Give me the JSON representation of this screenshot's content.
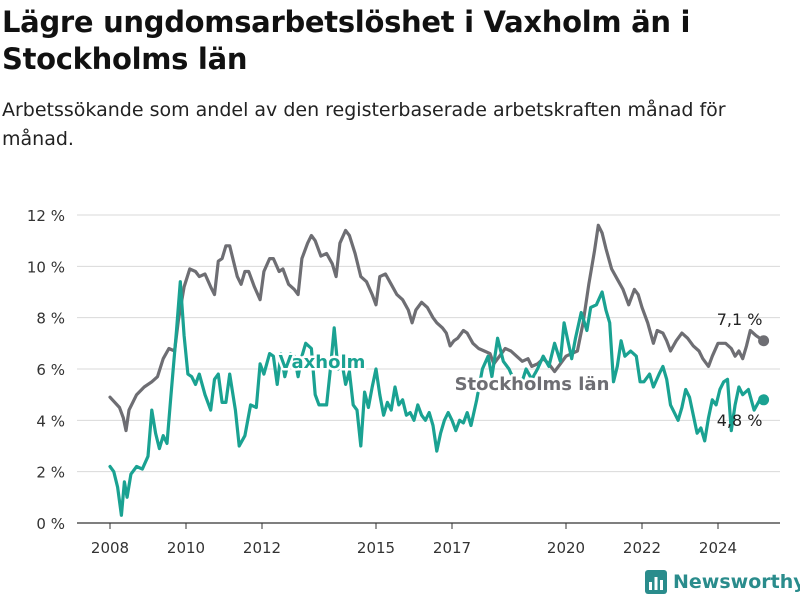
{
  "header": {
    "title": "Lägre ungdomsarbetslöshet i Vaxholm än i Stockholms län",
    "subtitle": "Arbetssökande som andel av den registerbaserade arbetskraften månad för månad."
  },
  "brand": {
    "name": "Newsworthy",
    "color": "#2a8c8c"
  },
  "chart_data": {
    "type": "line",
    "title": "Lägre ungdomsarbetslöshet i Vaxholm än i Stockholms län",
    "subtitle": "Arbetssökande som andel av den registerbaserade arbetskraften månad för månad.",
    "xlabel": "",
    "ylabel": "",
    "xlim": [
      2008,
      2025.2
    ],
    "ylim": [
      0,
      12
    ],
    "y_ticks": [
      0,
      2,
      4,
      6,
      8,
      10,
      12
    ],
    "y_tick_labels": [
      "0 %",
      "2 %",
      "4 %",
      "6 %",
      "8 %",
      "10 %",
      "12 %"
    ],
    "x_ticks": [
      2008,
      2010,
      2012,
      2015,
      2017,
      2020,
      2022,
      2024
    ],
    "x_tick_labels": [
      "2008",
      "2010",
      "2012",
      "2015",
      "2017",
      "2020",
      "2022",
      "2024"
    ],
    "grid": true,
    "series": [
      {
        "name": "Stockholms län",
        "color": "#6e6e73",
        "end_label": "7,1 %",
        "points": [
          [
            2008.0,
            4.9
          ],
          [
            2008.25,
            4.5
          ],
          [
            2008.35,
            4.1
          ],
          [
            2008.42,
            3.6
          ],
          [
            2008.5,
            4.4
          ],
          [
            2008.7,
            5.0
          ],
          [
            2008.9,
            5.3
          ],
          [
            2009.1,
            5.5
          ],
          [
            2009.25,
            5.7
          ],
          [
            2009.4,
            6.4
          ],
          [
            2009.55,
            6.8
          ],
          [
            2009.7,
            6.7
          ],
          [
            2009.8,
            7.9
          ],
          [
            2009.95,
            9.2
          ],
          [
            2010.1,
            9.9
          ],
          [
            2010.25,
            9.8
          ],
          [
            2010.35,
            9.6
          ],
          [
            2010.5,
            9.7
          ],
          [
            2010.65,
            9.2
          ],
          [
            2010.75,
            8.9
          ],
          [
            2010.85,
            10.2
          ],
          [
            2010.95,
            10.3
          ],
          [
            2011.05,
            10.8
          ],
          [
            2011.15,
            10.8
          ],
          [
            2011.25,
            10.2
          ],
          [
            2011.35,
            9.6
          ],
          [
            2011.45,
            9.3
          ],
          [
            2011.55,
            9.8
          ],
          [
            2011.65,
            9.8
          ],
          [
            2011.8,
            9.2
          ],
          [
            2011.95,
            8.7
          ],
          [
            2012.05,
            9.8
          ],
          [
            2012.2,
            10.3
          ],
          [
            2012.3,
            10.3
          ],
          [
            2012.45,
            9.8
          ],
          [
            2012.55,
            9.9
          ],
          [
            2012.7,
            9.3
          ],
          [
            2012.85,
            9.1
          ],
          [
            2012.95,
            8.9
          ],
          [
            2013.05,
            10.3
          ],
          [
            2013.2,
            10.9
          ],
          [
            2013.3,
            11.2
          ],
          [
            2013.4,
            11.0
          ],
          [
            2013.55,
            10.4
          ],
          [
            2013.7,
            10.5
          ],
          [
            2013.85,
            10.1
          ],
          [
            2013.95,
            9.6
          ],
          [
            2014.05,
            10.9
          ],
          [
            2014.2,
            11.4
          ],
          [
            2014.3,
            11.2
          ],
          [
            2014.45,
            10.5
          ],
          [
            2014.6,
            9.6
          ],
          [
            2014.75,
            9.4
          ],
          [
            2014.9,
            8.9
          ],
          [
            2015.0,
            8.5
          ],
          [
            2015.1,
            9.6
          ],
          [
            2015.25,
            9.7
          ],
          [
            2015.4,
            9.3
          ],
          [
            2015.55,
            8.9
          ],
          [
            2015.7,
            8.7
          ],
          [
            2015.85,
            8.3
          ],
          [
            2015.95,
            7.8
          ],
          [
            2016.05,
            8.3
          ],
          [
            2016.2,
            8.6
          ],
          [
            2016.35,
            8.4
          ],
          [
            2016.5,
            8.0
          ],
          [
            2016.6,
            7.8
          ],
          [
            2016.75,
            7.6
          ],
          [
            2016.85,
            7.4
          ],
          [
            2016.95,
            6.9
          ],
          [
            2017.05,
            7.1
          ],
          [
            2017.15,
            7.2
          ],
          [
            2017.3,
            7.5
          ],
          [
            2017.4,
            7.4
          ],
          [
            2017.55,
            7.0
          ],
          [
            2017.7,
            6.8
          ],
          [
            2017.85,
            6.7
          ],
          [
            2018.0,
            6.6
          ],
          [
            2018.1,
            6.2
          ],
          [
            2018.25,
            6.5
          ],
          [
            2018.4,
            6.8
          ],
          [
            2018.55,
            6.7
          ],
          [
            2018.7,
            6.5
          ],
          [
            2018.85,
            6.3
          ],
          [
            2019.0,
            6.4
          ],
          [
            2019.1,
            6.1
          ],
          [
            2019.25,
            6.2
          ],
          [
            2019.4,
            6.4
          ],
          [
            2019.55,
            6.2
          ],
          [
            2019.7,
            5.9
          ],
          [
            2019.85,
            6.2
          ],
          [
            2020.0,
            6.5
          ],
          [
            2020.15,
            6.6
          ],
          [
            2020.3,
            6.7
          ],
          [
            2020.45,
            7.8
          ],
          [
            2020.6,
            9.3
          ],
          [
            2020.75,
            10.6
          ],
          [
            2020.85,
            11.6
          ],
          [
            2020.95,
            11.3
          ],
          [
            2021.05,
            10.7
          ],
          [
            2021.2,
            9.9
          ],
          [
            2021.35,
            9.5
          ],
          [
            2021.5,
            9.1
          ],
          [
            2021.65,
            8.5
          ],
          [
            2021.8,
            9.1
          ],
          [
            2021.9,
            8.9
          ],
          [
            2022.0,
            8.4
          ],
          [
            2022.15,
            7.8
          ],
          [
            2022.3,
            7.0
          ],
          [
            2022.4,
            7.5
          ],
          [
            2022.55,
            7.4
          ],
          [
            2022.65,
            7.1
          ],
          [
            2022.75,
            6.7
          ],
          [
            2022.9,
            7.1
          ],
          [
            2023.05,
            7.4
          ],
          [
            2023.2,
            7.2
          ],
          [
            2023.35,
            6.9
          ],
          [
            2023.5,
            6.7
          ],
          [
            2023.6,
            6.4
          ],
          [
            2023.75,
            6.1
          ],
          [
            2023.85,
            6.5
          ],
          [
            2024.0,
            7.0
          ],
          [
            2024.2,
            7.0
          ],
          [
            2024.35,
            6.8
          ],
          [
            2024.45,
            6.5
          ],
          [
            2024.55,
            6.7
          ],
          [
            2024.65,
            6.4
          ],
          [
            2024.75,
            6.9
          ],
          [
            2024.85,
            7.5
          ],
          [
            2025.0,
            7.3
          ],
          [
            2025.2,
            7.1
          ]
        ]
      },
      {
        "name": "Vaxholm",
        "color": "#1aa292",
        "end_label": "4,8 %",
        "points": [
          [
            2008.0,
            2.2
          ],
          [
            2008.1,
            2.0
          ],
          [
            2008.2,
            1.4
          ],
          [
            2008.3,
            0.3
          ],
          [
            2008.38,
            1.6
          ],
          [
            2008.45,
            1.0
          ],
          [
            2008.55,
            1.9
          ],
          [
            2008.7,
            2.2
          ],
          [
            2008.85,
            2.1
          ],
          [
            2009.0,
            2.6
          ],
          [
            2009.1,
            4.4
          ],
          [
            2009.2,
            3.5
          ],
          [
            2009.3,
            2.9
          ],
          [
            2009.4,
            3.4
          ],
          [
            2009.5,
            3.1
          ],
          [
            2009.6,
            4.9
          ],
          [
            2009.75,
            7.5
          ],
          [
            2009.85,
            9.4
          ],
          [
            2009.95,
            7.3
          ],
          [
            2010.05,
            5.8
          ],
          [
            2010.15,
            5.7
          ],
          [
            2010.25,
            5.4
          ],
          [
            2010.35,
            5.8
          ],
          [
            2010.5,
            5.0
          ],
          [
            2010.65,
            4.4
          ],
          [
            2010.75,
            5.6
          ],
          [
            2010.85,
            5.8
          ],
          [
            2010.95,
            4.7
          ],
          [
            2011.05,
            4.7
          ],
          [
            2011.15,
            5.8
          ],
          [
            2011.3,
            4.4
          ],
          [
            2011.4,
            3.0
          ],
          [
            2011.55,
            3.4
          ],
          [
            2011.7,
            4.6
          ],
          [
            2011.85,
            4.5
          ],
          [
            2011.95,
            6.2
          ],
          [
            2012.05,
            5.8
          ],
          [
            2012.2,
            6.6
          ],
          [
            2012.3,
            6.5
          ],
          [
            2012.4,
            5.4
          ],
          [
            2012.5,
            6.6
          ],
          [
            2012.6,
            5.7
          ],
          [
            2012.75,
            6.6
          ],
          [
            2012.85,
            6.5
          ],
          [
            2012.95,
            5.7
          ],
          [
            2013.05,
            6.5
          ],
          [
            2013.15,
            7.0
          ],
          [
            2013.3,
            6.8
          ],
          [
            2013.4,
            5.0
          ],
          [
            2013.5,
            4.6
          ],
          [
            2013.6,
            4.6
          ],
          [
            2013.7,
            4.6
          ],
          [
            2013.8,
            6.0
          ],
          [
            2013.9,
            7.6
          ],
          [
            2014.0,
            6.0
          ],
          [
            2014.1,
            6.3
          ],
          [
            2014.2,
            5.4
          ],
          [
            2014.3,
            5.9
          ],
          [
            2014.4,
            4.6
          ],
          [
            2014.5,
            4.4
          ],
          [
            2014.6,
            3.0
          ],
          [
            2014.7,
            5.1
          ],
          [
            2014.8,
            4.5
          ],
          [
            2014.9,
            5.3
          ],
          [
            2015.0,
            6.0
          ],
          [
            2015.1,
            5.0
          ],
          [
            2015.2,
            4.2
          ],
          [
            2015.3,
            4.7
          ],
          [
            2015.4,
            4.4
          ],
          [
            2015.5,
            5.3
          ],
          [
            2015.6,
            4.6
          ],
          [
            2015.7,
            4.8
          ],
          [
            2015.8,
            4.2
          ],
          [
            2015.9,
            4.3
          ],
          [
            2016.0,
            4.0
          ],
          [
            2016.1,
            4.6
          ],
          [
            2016.2,
            4.2
          ],
          [
            2016.3,
            4.0
          ],
          [
            2016.4,
            4.3
          ],
          [
            2016.5,
            3.8
          ],
          [
            2016.6,
            2.8
          ],
          [
            2016.7,
            3.5
          ],
          [
            2016.8,
            4.0
          ],
          [
            2016.9,
            4.3
          ],
          [
            2017.0,
            4.0
          ],
          [
            2017.1,
            3.6
          ],
          [
            2017.2,
            4.0
          ],
          [
            2017.3,
            3.9
          ],
          [
            2017.4,
            4.3
          ],
          [
            2017.5,
            3.8
          ],
          [
            2017.65,
            4.8
          ],
          [
            2017.8,
            6.0
          ],
          [
            2017.95,
            6.5
          ],
          [
            2018.05,
            5.7
          ],
          [
            2018.2,
            7.2
          ],
          [
            2018.35,
            6.3
          ],
          [
            2018.5,
            6.0
          ],
          [
            2018.65,
            5.5
          ],
          [
            2018.8,
            5.3
          ],
          [
            2018.95,
            6.0
          ],
          [
            2019.1,
            5.6
          ],
          [
            2019.25,
            6.0
          ],
          [
            2019.4,
            6.5
          ],
          [
            2019.55,
            6.1
          ],
          [
            2019.7,
            7.0
          ],
          [
            2019.85,
            6.3
          ],
          [
            2019.95,
            7.8
          ],
          [
            2020.05,
            7.1
          ],
          [
            2020.15,
            6.4
          ],
          [
            2020.25,
            7.2
          ],
          [
            2020.4,
            8.2
          ],
          [
            2020.55,
            7.5
          ],
          [
            2020.65,
            8.4
          ],
          [
            2020.8,
            8.5
          ],
          [
            2020.95,
            9.0
          ],
          [
            2021.05,
            8.3
          ],
          [
            2021.15,
            7.8
          ],
          [
            2021.25,
            5.5
          ],
          [
            2021.35,
            6.1
          ],
          [
            2021.45,
            7.1
          ],
          [
            2021.55,
            6.5
          ],
          [
            2021.7,
            6.7
          ],
          [
            2021.85,
            6.5
          ],
          [
            2021.95,
            5.5
          ],
          [
            2022.05,
            5.5
          ],
          [
            2022.2,
            5.8
          ],
          [
            2022.3,
            5.3
          ],
          [
            2022.45,
            5.8
          ],
          [
            2022.55,
            6.1
          ],
          [
            2022.65,
            5.6
          ],
          [
            2022.75,
            4.6
          ],
          [
            2022.85,
            4.3
          ],
          [
            2022.95,
            4.0
          ],
          [
            2023.05,
            4.5
          ],
          [
            2023.15,
            5.2
          ],
          [
            2023.25,
            4.9
          ],
          [
            2023.35,
            4.2
          ],
          [
            2023.45,
            3.5
          ],
          [
            2023.55,
            3.7
          ],
          [
            2023.65,
            3.2
          ],
          [
            2023.75,
            4.1
          ],
          [
            2023.85,
            4.8
          ],
          [
            2023.95,
            4.6
          ],
          [
            2024.05,
            5.2
          ],
          [
            2024.15,
            5.5
          ],
          [
            2024.25,
            5.6
          ],
          [
            2024.35,
            3.6
          ],
          [
            2024.45,
            4.6
          ],
          [
            2024.55,
            5.3
          ],
          [
            2024.65,
            5.0
          ],
          [
            2024.8,
            5.2
          ],
          [
            2024.95,
            4.4
          ],
          [
            2025.1,
            4.8
          ],
          [
            2025.2,
            4.8
          ]
        ]
      }
    ]
  }
}
